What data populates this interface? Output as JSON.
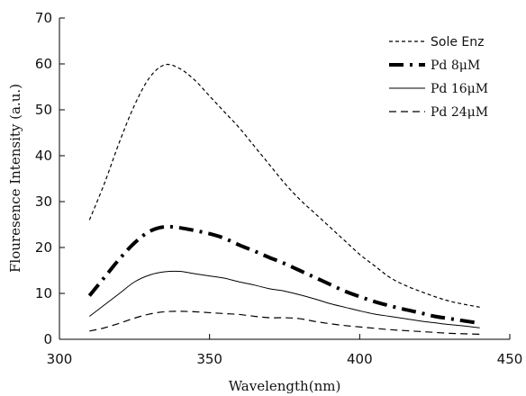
{
  "chart_data": {
    "type": "line",
    "xlabel": "Wavelength(nm)",
    "ylabel": "Flouresence Intensity (a.u.)",
    "xlim": [
      300,
      450
    ],
    "ylim": [
      0,
      70
    ],
    "xticks": [
      300,
      350,
      400,
      450
    ],
    "yticks": [
      0,
      10,
      20,
      30,
      40,
      50,
      60,
      70
    ],
    "grid": false,
    "legend_position": "top-right",
    "series": [
      {
        "name": "Sole Enz",
        "style": "short-dash",
        "x": [
          310,
          315,
          320,
          325,
          330,
          335,
          340,
          345,
          350,
          355,
          360,
          365,
          370,
          375,
          380,
          385,
          390,
          395,
          400,
          405,
          410,
          415,
          420,
          425,
          430,
          435,
          440
        ],
        "y": [
          26,
          34,
          43,
          51,
          57,
          59.8,
          59,
          56.5,
          53,
          49.5,
          46,
          42,
          38,
          34,
          30.5,
          27.5,
          24.5,
          21.5,
          18.5,
          16,
          13.5,
          11.8,
          10.5,
          9.3,
          8.3,
          7.6,
          7
        ]
      },
      {
        "name": "Pd 8μM",
        "style": "bold-dash-dot",
        "x": [
          310,
          315,
          320,
          325,
          330,
          335,
          340,
          345,
          350,
          355,
          360,
          365,
          370,
          375,
          380,
          385,
          390,
          395,
          400,
          405,
          410,
          415,
          420,
          425,
          430,
          435,
          440
        ],
        "y": [
          9.5,
          13.5,
          17.5,
          21,
          23.5,
          24.5,
          24.3,
          23.7,
          23,
          22,
          20.5,
          19.2,
          17.8,
          16.5,
          15,
          13.5,
          12,
          10.5,
          9.3,
          8.2,
          7.3,
          6.5,
          5.8,
          5,
          4.5,
          4,
          3.5
        ]
      },
      {
        "name": "Pd 16μM",
        "style": "solid",
        "x": [
          310,
          315,
          320,
          325,
          330,
          335,
          340,
          345,
          350,
          355,
          360,
          365,
          370,
          375,
          380,
          385,
          390,
          395,
          400,
          405,
          410,
          415,
          420,
          425,
          430,
          435,
          440
        ],
        "y": [
          5,
          7.5,
          10,
          12.5,
          14,
          14.7,
          14.8,
          14.3,
          13.8,
          13.3,
          12.5,
          11.8,
          11,
          10.5,
          9.7,
          8.8,
          7.8,
          7,
          6.2,
          5.5,
          5,
          4.5,
          4,
          3.6,
          3.2,
          2.9,
          2.5
        ]
      },
      {
        "name": "Pd 24μM",
        "style": "long-dash",
        "x": [
          310,
          315,
          320,
          325,
          330,
          335,
          340,
          345,
          350,
          355,
          360,
          365,
          370,
          375,
          380,
          385,
          390,
          395,
          400,
          405,
          410,
          415,
          420,
          425,
          430,
          435,
          440
        ],
        "y": [
          1.8,
          2.5,
          3.5,
          4.6,
          5.5,
          6,
          6.1,
          6,
          5.8,
          5.6,
          5.4,
          5,
          4.7,
          4.7,
          4.5,
          3.9,
          3.4,
          3,
          2.7,
          2.4,
          2.1,
          1.9,
          1.7,
          1.5,
          1.3,
          1.2,
          1.1
        ]
      }
    ]
  }
}
